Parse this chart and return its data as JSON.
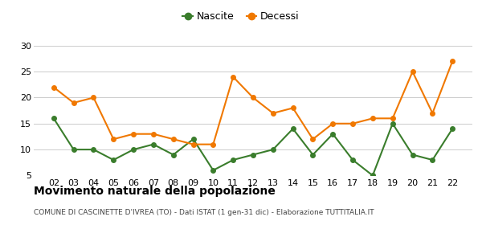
{
  "years": [
    "02",
    "03",
    "04",
    "05",
    "06",
    "07",
    "08",
    "09",
    "10",
    "11",
    "12",
    "13",
    "14",
    "15",
    "16",
    "17",
    "18",
    "19",
    "20",
    "21",
    "22"
  ],
  "nascite": [
    16,
    10,
    10,
    8,
    10,
    11,
    9,
    12,
    6,
    8,
    9,
    10,
    14,
    9,
    13,
    8,
    5,
    15,
    9,
    8,
    14
  ],
  "decessi": [
    22,
    19,
    20,
    12,
    13,
    13,
    12,
    11,
    11,
    24,
    20,
    17,
    18,
    12,
    15,
    15,
    16,
    16,
    25,
    17,
    27
  ],
  "nascite_color": "#3a7d2c",
  "decessi_color": "#f07800",
  "title": "Movimento naturale della popolazione",
  "subtitle": "COMUNE DI CASCINETTE D'IVREA (TO) - Dati ISTAT (1 gen-31 dic) - Elaborazione TUTTITALIA.IT",
  "legend_nascite": "Nascite",
  "legend_decessi": "Decessi",
  "ylim": [
    5,
    31
  ],
  "yticks": [
    5,
    10,
    15,
    20,
    25,
    30
  ],
  "background_color": "#ffffff",
  "grid_color": "#cccccc"
}
